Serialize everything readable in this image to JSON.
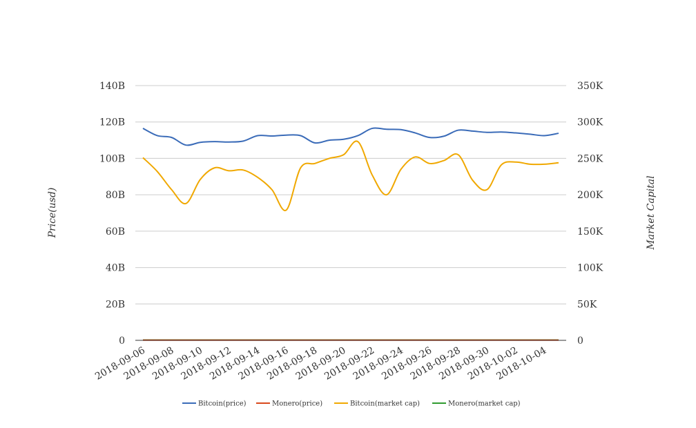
{
  "chart_data": {
    "type": "line",
    "x": [
      "2018-09-06",
      "2018-09-07",
      "2018-09-08",
      "2018-09-09",
      "2018-09-10",
      "2018-09-11",
      "2018-09-12",
      "2018-09-13",
      "2018-09-14",
      "2018-09-15",
      "2018-09-16",
      "2018-09-17",
      "2018-09-18",
      "2018-09-19",
      "2018-09-20",
      "2018-09-21",
      "2018-09-22",
      "2018-09-23",
      "2018-09-24",
      "2018-09-25",
      "2018-09-26",
      "2018-09-27",
      "2018-09-28",
      "2018-09-29",
      "2018-09-30",
      "2018-10-01",
      "2018-10-02",
      "2018-10-03",
      "2018-10-04",
      "2018-10-05"
    ],
    "x_tick_labels": [
      "2018-09-06",
      "2018-09-08",
      "2018-09-10",
      "2018-09-12",
      "2018-09-14",
      "2018-09-16",
      "2018-09-18",
      "2018-09-20",
      "2018-09-22",
      "2018-09-24",
      "2018-09-26",
      "2018-09-28",
      "2018-09-30",
      "2018-10-02",
      "2018-10-04"
    ],
    "y_left": {
      "label": "Price(usd)",
      "ticks": [
        "0",
        "20B",
        "40B",
        "60B",
        "80B",
        "100B",
        "120B",
        "140B"
      ],
      "range": [
        0,
        140
      ]
    },
    "y_right": {
      "label": "Market Capital",
      "ticks": [
        "0",
        "50K",
        "100K",
        "150K",
        "200K",
        "250K",
        "300K",
        "350K"
      ],
      "range": [
        0,
        350
      ]
    },
    "series": [
      {
        "name": "Bitcoin(price)",
        "axis": "left",
        "color": "#3a6bb8",
        "values": [
          116.5,
          112.5,
          111.5,
          107.3,
          108.8,
          109.2,
          109.0,
          109.5,
          112.5,
          112.3,
          112.8,
          112.5,
          108.5,
          110.0,
          110.5,
          112.5,
          116.5,
          116.0,
          115.8,
          114.0,
          111.5,
          112.2,
          115.5,
          115.0,
          114.3,
          114.5,
          114.0,
          113.3,
          112.5,
          113.8
        ]
      },
      {
        "name": "Monero(price)",
        "axis": "left",
        "color": "#d9481b",
        "values": [
          0.1,
          0.1,
          0.1,
          0.1,
          0.1,
          0.1,
          0.1,
          0.1,
          0.1,
          0.1,
          0.1,
          0.1,
          0.1,
          0.1,
          0.1,
          0.1,
          0.1,
          0.1,
          0.1,
          0.1,
          0.1,
          0.1,
          0.1,
          0.1,
          0.1,
          0.1,
          0.1,
          0.1,
          0.1,
          0.1
        ]
      },
      {
        "name": "Bitcoin(market cap)",
        "axis": "right",
        "color": "#f0a800",
        "values": [
          251,
          232,
          207,
          188,
          221,
          237,
          233,
          234,
          224,
          207,
          179,
          237,
          243,
          250,
          255,
          273,
          227,
          200,
          235,
          252,
          243,
          247,
          255,
          220,
          207,
          241,
          245,
          242,
          242,
          244
        ]
      },
      {
        "name": "Monero(market cap)",
        "axis": "right",
        "color": "#2e9b2e",
        "values": [
          0.5,
          0.5,
          0.5,
          0.5,
          0.5,
          0.5,
          0.5,
          0.5,
          0.5,
          0.5,
          0.5,
          0.5,
          0.5,
          0.5,
          0.5,
          0.5,
          0.5,
          0.5,
          0.5,
          0.5,
          0.5,
          0.5,
          0.5,
          0.5,
          0.5,
          0.5,
          0.5,
          0.5,
          0.5,
          0.5
        ]
      }
    ],
    "legend_position": "bottom",
    "grid": true,
    "gridline_color": "#cccccc",
    "axis_color": "#333333",
    "text_color": "#333333"
  }
}
